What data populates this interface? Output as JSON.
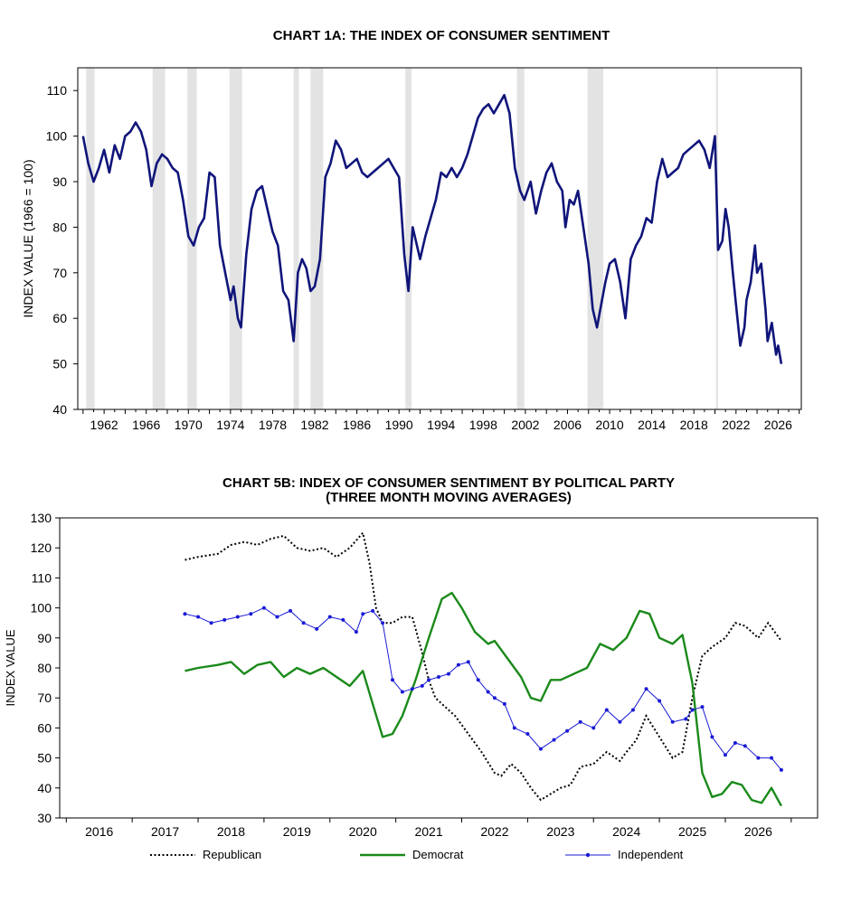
{
  "chart_data": [
    {
      "type": "line",
      "title": "CHART 1A: THE INDEX OF CONSUMER SENTIMENT",
      "xlabel": "",
      "ylabel": "INDEX VALUE (1966 = 100)",
      "xlim": [
        1959.5,
        2028.2
      ],
      "ylim": [
        40,
        115
      ],
      "y_ticks": [
        40,
        50,
        60,
        70,
        80,
        90,
        100,
        110
      ],
      "x_ticks": [
        1962,
        1966,
        1970,
        1974,
        1978,
        1982,
        1986,
        1990,
        1994,
        1998,
        2002,
        2006,
        2010,
        2014,
        2018,
        2022,
        2026
      ],
      "recession_shading": [
        [
          1960.3,
          1961.1
        ],
        [
          1966.6,
          1967.8
        ],
        [
          1969.9,
          1970.8
        ],
        [
          1973.9,
          1975.1
        ],
        [
          1980.0,
          1980.5
        ],
        [
          1981.6,
          1982.8
        ],
        [
          1990.6,
          1991.2
        ],
        [
          2001.2,
          2001.9
        ],
        [
          2007.9,
          2009.4
        ],
        [
          2020.1,
          2020.3
        ]
      ],
      "line_color": "#10157a",
      "shading_color": "#e3e3e3",
      "series": [
        {
          "x": [
            1960.0,
            1960.5,
            1961.0,
            1961.5,
            1962.0,
            1962.5,
            1963.0,
            1963.5,
            1964.0,
            1964.5,
            1965.0,
            1965.5,
            1966.0,
            1966.5,
            1967.0,
            1967.5,
            1968.0,
            1968.5,
            1969.0,
            1969.5,
            1970.0,
            1970.5,
            1971.0,
            1971.5,
            1972.0,
            1972.5,
            1973.0,
            1973.5,
            1974.0,
            1974.3,
            1974.7,
            1975.0,
            1975.5,
            1976.0,
            1976.5,
            1977.0,
            1977.5,
            1978.0,
            1978.5,
            1979.0,
            1979.5,
            1980.0,
            1980.4,
            1980.8,
            1981.2,
            1981.6,
            1982.0,
            1982.5,
            1983.0,
            1983.5,
            1984.0,
            1984.5,
            1985.0,
            1985.5,
            1986.0,
            1986.5,
            1987.0,
            1987.5,
            1988.0,
            1988.5,
            1989.0,
            1989.5,
            1990.0,
            1990.5,
            1990.9,
            1991.3,
            1991.7,
            1992.0,
            1992.5,
            1993.0,
            1993.5,
            1994.0,
            1994.5,
            1995.0,
            1995.5,
            1996.0,
            1996.5,
            1997.0,
            1997.5,
            1998.0,
            1998.5,
            1999.0,
            1999.5,
            2000.0,
            2000.5,
            2001.0,
            2001.5,
            2001.9,
            2002.5,
            2003.0,
            2003.5,
            2004.0,
            2004.5,
            2005.0,
            2005.5,
            2005.8,
            2006.2,
            2006.6,
            2007.0,
            2007.5,
            2008.0,
            2008.4,
            2008.8,
            2009.2,
            2009.6,
            2010.0,
            2010.5,
            2011.0,
            2011.5,
            2012.0,
            2012.5,
            2013.0,
            2013.5,
            2014.0,
            2014.5,
            2015.0,
            2015.5,
            2016.0,
            2016.5,
            2017.0,
            2017.5,
            2018.0,
            2018.5,
            2019.0,
            2019.5,
            2020.0,
            2020.3,
            2020.7,
            2021.0,
            2021.3,
            2021.7,
            2022.0,
            2022.4,
            2022.8,
            2023.0,
            2023.4,
            2023.8,
            2024.0,
            2024.4,
            2024.8,
            2025.0,
            2025.4,
            2025.8,
            2026.0,
            2026.3
          ],
          "y": [
            100,
            94,
            90,
            93,
            97,
            92,
            98,
            95,
            100,
            101,
            103,
            101,
            97,
            89,
            94,
            96,
            95,
            93,
            92,
            86,
            78,
            76,
            80,
            82,
            92,
            91,
            76,
            70,
            64,
            67,
            60,
            58,
            74,
            84,
            88,
            89,
            84,
            79,
            76,
            66,
            64,
            55,
            70,
            73,
            71,
            66,
            67,
            73,
            91,
            94,
            99,
            97,
            93,
            94,
            95,
            92,
            91,
            92,
            93,
            94,
            95,
            93,
            91,
            74,
            66,
            80,
            76,
            73,
            78,
            82,
            86,
            92,
            91,
            93,
            91,
            93,
            96,
            100,
            104,
            106,
            107,
            105,
            107,
            109,
            105,
            93,
            88,
            86,
            90,
            83,
            88,
            92,
            94,
            90,
            88,
            80,
            86,
            85,
            88,
            80,
            72,
            62,
            58,
            63,
            68,
            72,
            73,
            68,
            60,
            73,
            76,
            78,
            82,
            81,
            90,
            95,
            91,
            92,
            93,
            96,
            97,
            98,
            99,
            97,
            93,
            100,
            75,
            77,
            84,
            80,
            70,
            63,
            54,
            58,
            64,
            68,
            76,
            70,
            72,
            62,
            55,
            59,
            52,
            54,
            50
          ]
        }
      ]
    },
    {
      "type": "line",
      "title": "CHART 5B: INDEX OF CONSUMER SENTIMENT BY POLITICAL PARTY",
      "subtitle": "(THREE MONTH MOVING AVERAGES)",
      "xlabel": "",
      "ylabel": "INDEX VALUE",
      "xlim": [
        2015.4,
        2026.9
      ],
      "ylim": [
        30,
        130
      ],
      "y_ticks": [
        30,
        40,
        50,
        60,
        70,
        80,
        90,
        100,
        110,
        120,
        130
      ],
      "x_ticks": [
        2016,
        2017,
        2018,
        2019,
        2020,
        2021,
        2022,
        2023,
        2024,
        2025,
        2026
      ],
      "legend_position": "bottom",
      "series": [
        {
          "name": "Republican",
          "style": "dotted",
          "color": "#000000",
          "x": [
            2017.3,
            2017.5,
            2017.8,
            2018.0,
            2018.2,
            2018.4,
            2018.6,
            2018.8,
            2019.0,
            2019.2,
            2019.4,
            2019.6,
            2019.8,
            2020.0,
            2020.1,
            2020.2,
            2020.3,
            2020.45,
            2020.6,
            2020.75,
            2020.9,
            2021.0,
            2021.1,
            2021.25,
            2021.4,
            2021.6,
            2021.8,
            2022.0,
            2022.1,
            2022.25,
            2022.4,
            2022.55,
            2022.7,
            2022.85,
            2023.0,
            2023.15,
            2023.3,
            2023.5,
            2023.7,
            2023.9,
            2024.0,
            2024.15,
            2024.3,
            2024.5,
            2024.7,
            2024.85,
            2025.0,
            2025.15,
            2025.3,
            2025.5,
            2025.65,
            2025.8,
            2026.0,
            2026.15,
            2026.35
          ],
          "y": [
            116,
            117,
            118,
            121,
            122,
            121,
            123,
            124,
            120,
            119,
            120,
            117,
            120,
            125,
            115,
            100,
            95,
            95,
            97,
            97,
            85,
            76,
            70,
            67,
            64,
            58,
            52,
            45,
            44,
            48,
            45,
            40,
            36,
            38,
            40,
            41,
            47,
            48,
            52,
            49,
            52,
            56,
            64,
            57,
            50,
            52,
            70,
            84,
            87,
            90,
            95,
            94,
            90,
            95,
            89
          ]
        },
        {
          "name": "Democrat",
          "style": "solid",
          "color": "#1a8a1a",
          "x": [
            2017.3,
            2017.5,
            2017.8,
            2018.0,
            2018.2,
            2018.4,
            2018.6,
            2018.8,
            2019.0,
            2019.2,
            2019.4,
            2019.6,
            2019.8,
            2020.0,
            2020.15,
            2020.3,
            2020.45,
            2020.6,
            2020.8,
            2021.0,
            2021.2,
            2021.35,
            2021.5,
            2021.7,
            2021.9,
            2022.0,
            2022.2,
            2022.4,
            2022.55,
            2022.7,
            2022.85,
            2023.0,
            2023.2,
            2023.4,
            2023.6,
            2023.8,
            2024.0,
            2024.2,
            2024.35,
            2024.5,
            2024.7,
            2024.85,
            2025.0,
            2025.15,
            2025.3,
            2025.45,
            2025.6,
            2025.75,
            2025.9,
            2026.05,
            2026.2,
            2026.35
          ],
          "y": [
            79,
            80,
            81,
            82,
            78,
            81,
            82,
            77,
            80,
            78,
            80,
            77,
            74,
            79,
            68,
            57,
            58,
            64,
            76,
            90,
            103,
            105,
            100,
            92,
            88,
            89,
            83,
            77,
            70,
            69,
            76,
            76,
            78,
            80,
            88,
            86,
            90,
            99,
            98,
            90,
            88,
            91,
            75,
            45,
            37,
            38,
            42,
            41,
            36,
            35,
            40,
            34
          ]
        },
        {
          "name": "Independent",
          "style": "solid-dots",
          "color": "#1a1ad6",
          "x": [
            2017.3,
            2017.5,
            2017.7,
            2017.9,
            2018.1,
            2018.3,
            2018.5,
            2018.7,
            2018.9,
            2019.1,
            2019.3,
            2019.5,
            2019.7,
            2019.9,
            2020.0,
            2020.15,
            2020.3,
            2020.45,
            2020.6,
            2020.75,
            2020.9,
            2021.0,
            2021.15,
            2021.3,
            2021.45,
            2021.6,
            2021.75,
            2021.9,
            2022.0,
            2022.15,
            2022.3,
            2022.5,
            2022.7,
            2022.9,
            2023.1,
            2023.3,
            2023.5,
            2023.7,
            2023.9,
            2024.1,
            2024.3,
            2024.5,
            2024.7,
            2024.9,
            2025.0,
            2025.15,
            2025.3,
            2025.5,
            2025.65,
            2025.8,
            2026.0,
            2026.2,
            2026.35
          ],
          "y": [
            98,
            97,
            95,
            96,
            97,
            98,
            100,
            97,
            99,
            95,
            93,
            97,
            96,
            92,
            98,
            99,
            95,
            76,
            72,
            73,
            74,
            76,
            77,
            78,
            81,
            82,
            76,
            72,
            70,
            68,
            60,
            58,
            53,
            56,
            59,
            62,
            60,
            66,
            62,
            66,
            73,
            69,
            62,
            63,
            66,
            67,
            57,
            51,
            55,
            54,
            50,
            50,
            46
          ]
        }
      ]
    }
  ]
}
